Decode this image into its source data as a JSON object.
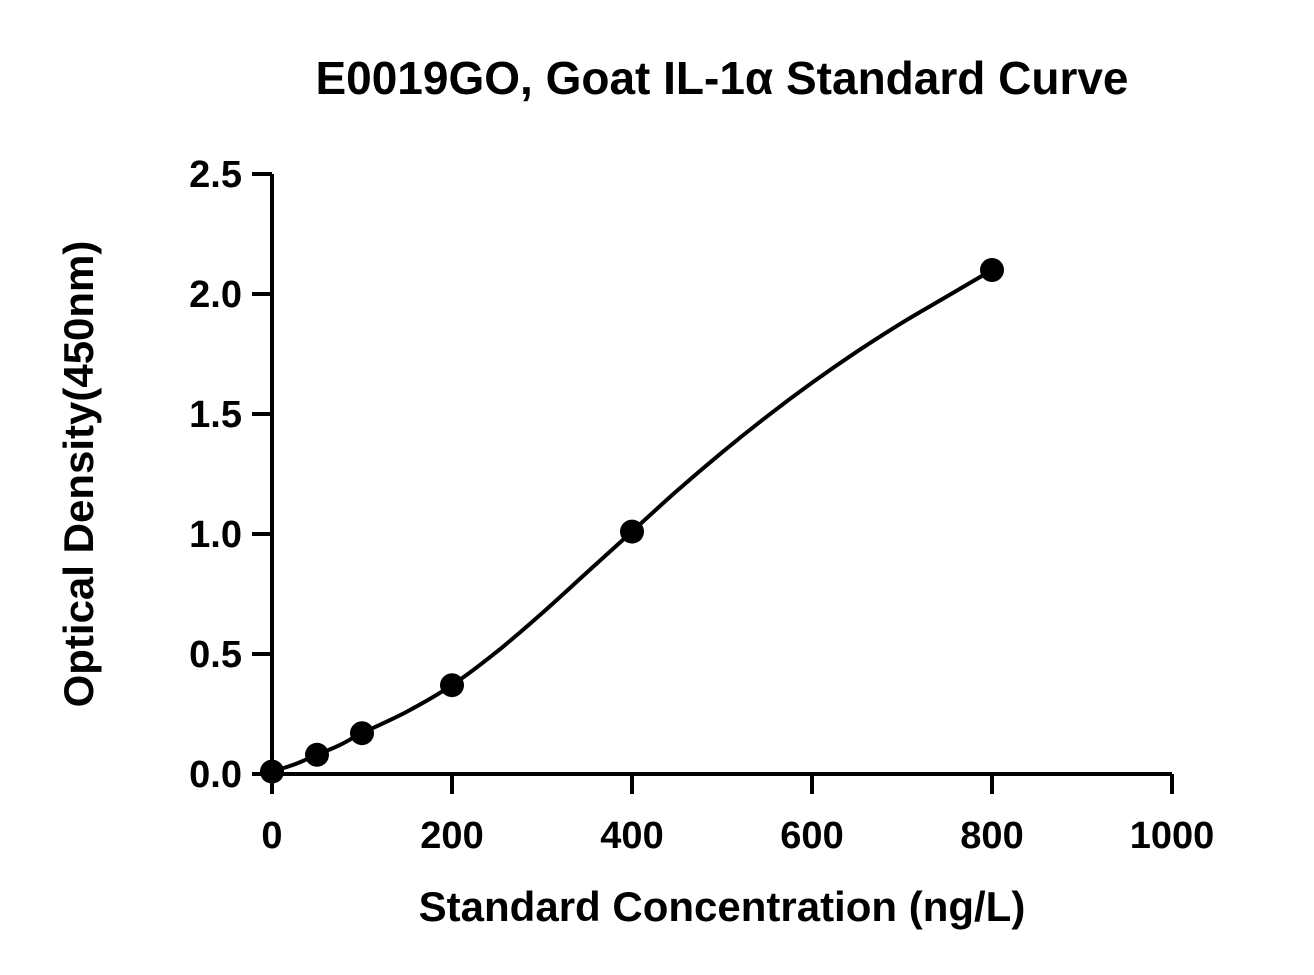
{
  "chart_data": {
    "type": "scatter",
    "title": "E0019GO, Goat IL-1α Standard Curve",
    "xlabel": "Standard Concentration (ng/L)",
    "ylabel": "Optical Density(450nm)",
    "xlim": [
      0,
      1000
    ],
    "ylim": [
      0,
      2.5
    ],
    "x_ticks": [
      "0",
      "200",
      "400",
      "600",
      "800",
      "1000"
    ],
    "y_ticks": [
      "0.0",
      "0.5",
      "1.0",
      "1.5",
      "2.0",
      "2.5"
    ],
    "grid": false,
    "legend": "none",
    "series": [
      {
        "points": [
          {
            "x": 0,
            "y": 0.01
          },
          {
            "x": 50,
            "y": 0.08
          },
          {
            "x": 100,
            "y": 0.17
          },
          {
            "x": 200,
            "y": 0.37
          },
          {
            "x": 400,
            "y": 1.01
          },
          {
            "x": 800,
            "y": 2.1
          }
        ],
        "fit_curve": [
          {
            "x": 0,
            "y": 0.01
          },
          {
            "x": 25,
            "y": 0.04
          },
          {
            "x": 50,
            "y": 0.08
          },
          {
            "x": 75,
            "y": 0.12
          },
          {
            "x": 100,
            "y": 0.17
          },
          {
            "x": 150,
            "y": 0.26
          },
          {
            "x": 200,
            "y": 0.37
          },
          {
            "x": 250,
            "y": 0.51
          },
          {
            "x": 300,
            "y": 0.67
          },
          {
            "x": 350,
            "y": 0.84
          },
          {
            "x": 400,
            "y": 1.01
          },
          {
            "x": 450,
            "y": 1.18
          },
          {
            "x": 500,
            "y": 1.34
          },
          {
            "x": 550,
            "y": 1.49
          },
          {
            "x": 600,
            "y": 1.63
          },
          {
            "x": 650,
            "y": 1.76
          },
          {
            "x": 700,
            "y": 1.88
          },
          {
            "x": 750,
            "y": 1.99
          },
          {
            "x": 800,
            "y": 2.1
          }
        ]
      }
    ],
    "colors": {
      "ink": "#000000",
      "background": "#ffffff"
    }
  }
}
